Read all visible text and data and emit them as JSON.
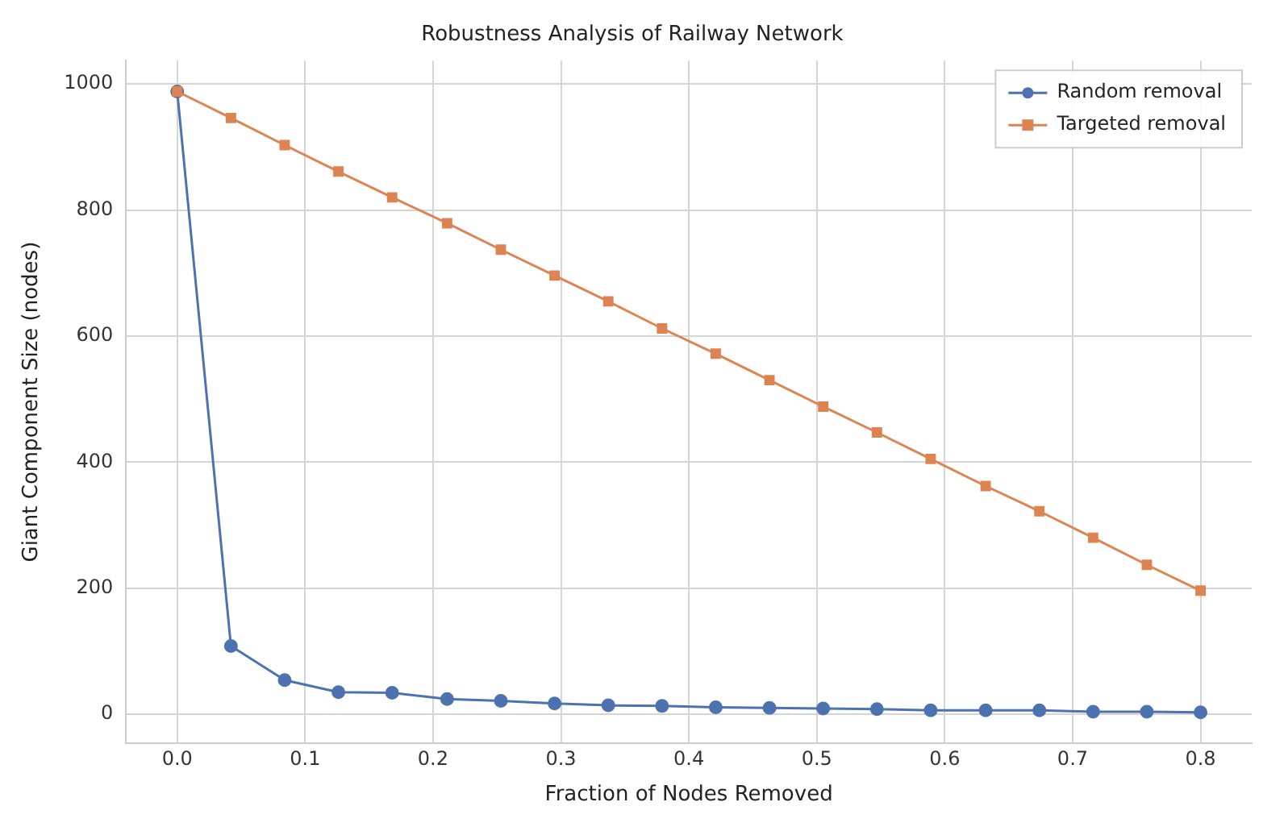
{
  "chart_data": {
    "type": "line",
    "title": "Robustness Analysis of Railway Network",
    "xlabel": "Fraction of Nodes Removed",
    "ylabel": "Giant Component Size (nodes)",
    "x": [
      0,
      0.042,
      0.084,
      0.126,
      0.168,
      0.211,
      0.253,
      0.295,
      0.337,
      0.379,
      0.421,
      0.463,
      0.505,
      0.547,
      0.589,
      0.632,
      0.674,
      0.716,
      0.758,
      0.8
    ],
    "series": [
      {
        "name": "Random removal",
        "color": "#4c72b0",
        "marker": "circle",
        "values": [
          988,
          108,
          54,
          35,
          34,
          24,
          21,
          17,
          14,
          13,
          11,
          10,
          9,
          8,
          6,
          6,
          6,
          4,
          4,
          3
        ]
      },
      {
        "name": "Targeted removal",
        "color": "#dd8452",
        "marker": "square",
        "values": [
          988,
          946,
          903,
          861,
          820,
          779,
          737,
          696,
          655,
          612,
          572,
          530,
          488,
          447,
          405,
          362,
          322,
          280,
          237,
          196
        ]
      }
    ],
    "xlim": [
      -0.04,
      0.84
    ],
    "xticks": [
      {
        "value": 0,
        "label": "0.0"
      },
      0.1,
      0.2,
      0.3,
      0.4,
      0.5,
      0.6,
      0.7,
      0.8
    ],
    "ylim": [
      -46,
      1037
    ],
    "yticks": [
      0,
      200,
      400,
      600,
      800,
      1000
    ],
    "grid": true,
    "legend": "top right",
    "line_style": "solid"
  }
}
